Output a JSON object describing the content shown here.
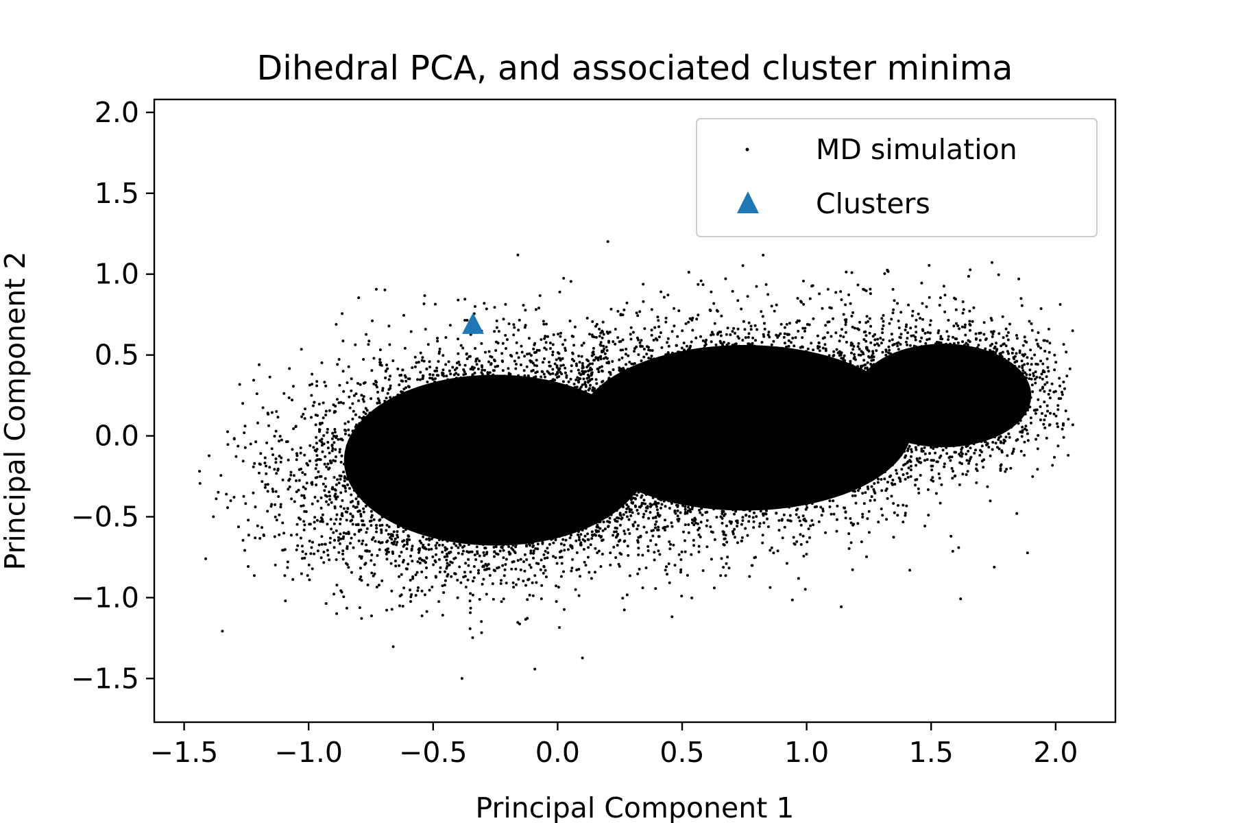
{
  "chart_data": {
    "type": "scatter",
    "title": "Dihedral PCA, and associated cluster minima",
    "xlabel": "Principal Component 1",
    "ylabel": "Principal Component 2",
    "xlim": [
      -1.62,
      2.24
    ],
    "ylim": [
      -1.77,
      2.08
    ],
    "xticks": [
      -1.5,
      -1.0,
      -0.5,
      0.0,
      0.5,
      1.0,
      1.5,
      2.0
    ],
    "yticks": [
      -1.5,
      -1.0,
      -0.5,
      0.0,
      0.5,
      1.0,
      1.5,
      2.0
    ],
    "grid": false,
    "legend_position": "top-right",
    "series": [
      {
        "name": "MD simulation",
        "marker": "point",
        "color": "#000000",
        "distribution": {
          "components": [
            {
              "center": [
                -0.25,
                -0.15
              ],
              "sd": [
                0.38,
                0.33
              ],
              "weight": 0.5
            },
            {
              "center": [
                0.75,
                0.05
              ],
              "sd": [
                0.42,
                0.32
              ],
              "weight": 0.35
            },
            {
              "center": [
                1.55,
                0.25
              ],
              "sd": [
                0.22,
                0.2
              ],
              "weight": 0.15
            }
          ],
          "x_range": [
            -1.45,
            2.07
          ],
          "y_range": [
            -1.6,
            1.91
          ]
        }
      },
      {
        "name": "Clusters",
        "marker": "triangle",
        "color": "#1f77b4",
        "points": [
          [
            -0.34,
            0.69
          ]
        ]
      }
    ]
  }
}
